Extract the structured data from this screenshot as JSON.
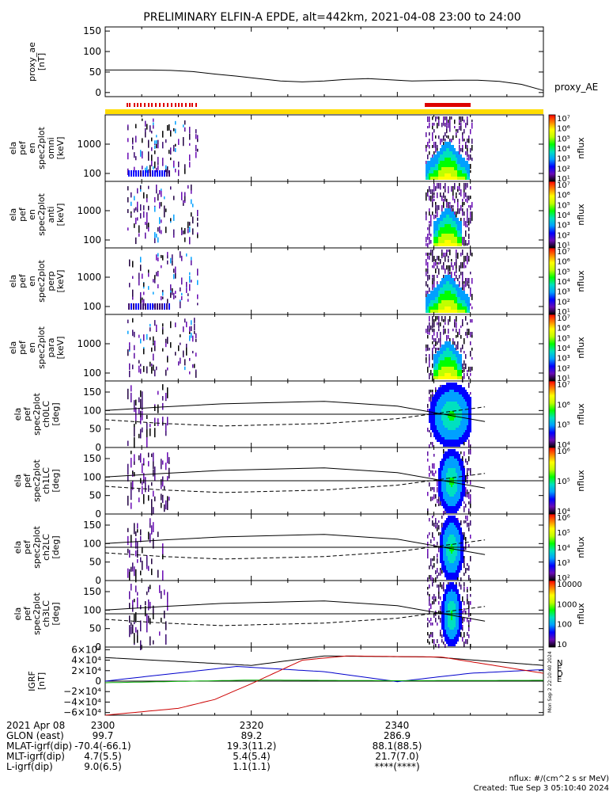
{
  "title": "PRELIMINARY ELFIN-A EPDE, alt=442km, 2021-04-08 23:00 to 24:00",
  "chart_data": {
    "type": "line",
    "title": "PRELIMINARY ELFIN-A EPDE, alt=442km, 2021-04-08 23:00 to 24:00",
    "x_range": [
      "23:00",
      "24:00"
    ],
    "panels": [
      {
        "id": "proxy_ae",
        "ylabel_lines": [
          "proxy_ae",
          "[nT]"
        ],
        "series_label": "proxy_AE",
        "ylim": [
          -10,
          160
        ],
        "yticks": [
          "0",
          "50",
          "100",
          "150"
        ],
        "x_min": [
          0,
          3,
          6,
          9,
          12,
          15,
          18,
          21,
          24,
          27,
          30,
          33,
          36,
          39,
          42,
          45,
          48,
          51,
          54,
          57,
          60
        ],
        "values": [
          55,
          55,
          55,
          54,
          51,
          45,
          40,
          34,
          28,
          26,
          28,
          32,
          34,
          31,
          28,
          29,
          30,
          30,
          27,
          20,
          5
        ]
      },
      {
        "id": "omni",
        "ylabel_lines": [
          "ela",
          "pef",
          "en",
          "spec2plot",
          "omni",
          "[keV]"
        ],
        "yticks": [
          "100",
          "1000"
        ],
        "zlabel": "nflux",
        "zticks": [
          "10¹",
          "10²",
          "10³",
          "10⁴",
          "10⁵",
          "10⁶",
          "10⁷"
        ]
      },
      {
        "id": "anti",
        "ylabel_lines": [
          "ela",
          "pef",
          "en",
          "spec2plot",
          "anti",
          "[keV]"
        ],
        "yticks": [
          "100",
          "1000"
        ],
        "zlabel": "nflux",
        "zticks": [
          "10¹",
          "10²",
          "10³",
          "10⁴",
          "10⁵",
          "10⁶",
          "10⁷"
        ]
      },
      {
        "id": "perp",
        "ylabel_lines": [
          "ela",
          "pef",
          "en",
          "spec2plot",
          "perp",
          "[keV]"
        ],
        "yticks": [
          "100",
          "1000"
        ],
        "zlabel": "nflux",
        "zticks": [
          "10¹",
          "10²",
          "10³",
          "10⁴",
          "10⁵",
          "10⁶",
          "10⁷"
        ]
      },
      {
        "id": "para",
        "ylabel_lines": [
          "ela",
          "pef",
          "en",
          "spec2plot",
          "para",
          "[keV]"
        ],
        "yticks": [
          "100",
          "1000"
        ],
        "zlabel": "nflux",
        "zticks": [
          "10¹",
          "10²",
          "10³",
          "10⁴",
          "10⁵",
          "10⁶",
          "10⁷"
        ]
      },
      {
        "id": "ch0LC",
        "ylabel_lines": [
          "ela",
          "pef",
          "spec2plot",
          "ch0LC",
          "[deg]"
        ],
        "yticks": [
          "0",
          "50",
          "100",
          "150"
        ],
        "zlabel": "nflux",
        "zticks": [
          "10⁴",
          "10⁵",
          "10⁶",
          "10⁷"
        ]
      },
      {
        "id": "ch1LC",
        "ylabel_lines": [
          "ela",
          "pef",
          "spec2plot",
          "ch1LC",
          "[deg]"
        ],
        "yticks": [
          "0",
          "50",
          "100",
          "150"
        ],
        "zlabel": "nflux",
        "zticks": [
          "10⁴",
          "10⁵",
          "10⁶"
        ]
      },
      {
        "id": "ch2LC",
        "ylabel_lines": [
          "ela",
          "pef",
          "spec2plot",
          "ch2LC",
          "[deg]"
        ],
        "yticks": [
          "0",
          "50",
          "100",
          "150"
        ],
        "zlabel": "nflux",
        "zticks": [
          "10²",
          "10³",
          "10⁴",
          "10⁵",
          "10⁶"
        ]
      },
      {
        "id": "ch3LC",
        "ylabel_lines": [
          "ela",
          "pef",
          "spec2plot",
          "ch3LC",
          "[deg]"
        ],
        "yticks": [
          "0",
          "50",
          "100",
          "150"
        ],
        "zlabel": "nflux",
        "zticks": [
          "10",
          "100",
          "1000",
          "10000"
        ]
      },
      {
        "id": "igrf",
        "ylabel_lines": [
          "IGRF",
          "[nT]"
        ],
        "yticks": [
          "6×10⁴",
          "4×10⁴",
          "2×10⁴",
          "0",
          "−2×10⁴",
          "−4×10⁴",
          "−6×10⁴"
        ],
        "ylim": [
          -65000,
          65000
        ],
        "legend": [
          "N",
          "E",
          "D",
          "E"
        ],
        "series": [
          {
            "name": "N",
            "color": "#000000",
            "x_min": [
              0,
              20,
              30,
              45,
              60
            ],
            "values": [
              45000,
              30000,
              48000,
              46000,
              30000
            ]
          },
          {
            "name": "E",
            "color": "#0000cc",
            "x_min": [
              0,
              18,
              30,
              40,
              50,
              60
            ],
            "values": [
              0,
              28000,
              18000,
              -1000,
              15000,
              22000
            ]
          },
          {
            "name": "D",
            "color": "#cc0000",
            "x_min": [
              0,
              10,
              15,
              20,
              27,
              33,
              46,
              60
            ],
            "values": [
              -65000,
              -52000,
              -35000,
              -5000,
              40000,
              48000,
              46000,
              15000
            ]
          },
          {
            "name": "E",
            "color": "#00aa00",
            "x_min": [
              0,
              20,
              40,
              60
            ],
            "values": [
              -3000,
              2000,
              800,
              1500
            ]
          }
        ]
      }
    ]
  },
  "side_stamp": "Mon Sep  2 22:10:40 2024",
  "axis_rows": [
    {
      "label": "2021 Apr 08",
      "v1": "2300",
      "v2": "2320",
      "v3": "2340"
    },
    {
      "label": "GLON (east)",
      "v1": "99.7",
      "v2": "89.2",
      "v3": "286.9"
    },
    {
      "label": "MLAT-igrf(dip)",
      "v1": "-70.4(-66.1)",
      "v2": "19.3(11.2)",
      "v3": "88.1(88.5)"
    },
    {
      "label": "MLT-igrf(dip)",
      "v1": "4.7(5.5)",
      "v2": "5.4(5.4)",
      "v3": "21.7(7.0)"
    },
    {
      "label": "L-igrf(dip)",
      "v1": "9.0(6.5)",
      "v2": "1.1(1.1)",
      "v3": "****(****)"
    }
  ],
  "footer": {
    "units": "nflux: #/(cm^2 s sr MeV)",
    "created": "Created: Tue Sep  3 05:10:40 2024"
  },
  "colors": {
    "state_bar": "#ffdd00",
    "science_zone": "#dd0000",
    "colorbar": [
      "#000000",
      "#6a0ab4",
      "#0000ff",
      "#00a0ff",
      "#00e0c0",
      "#00ff00",
      "#c0ff00",
      "#ffff00",
      "#ff8000",
      "#ff0000"
    ]
  }
}
